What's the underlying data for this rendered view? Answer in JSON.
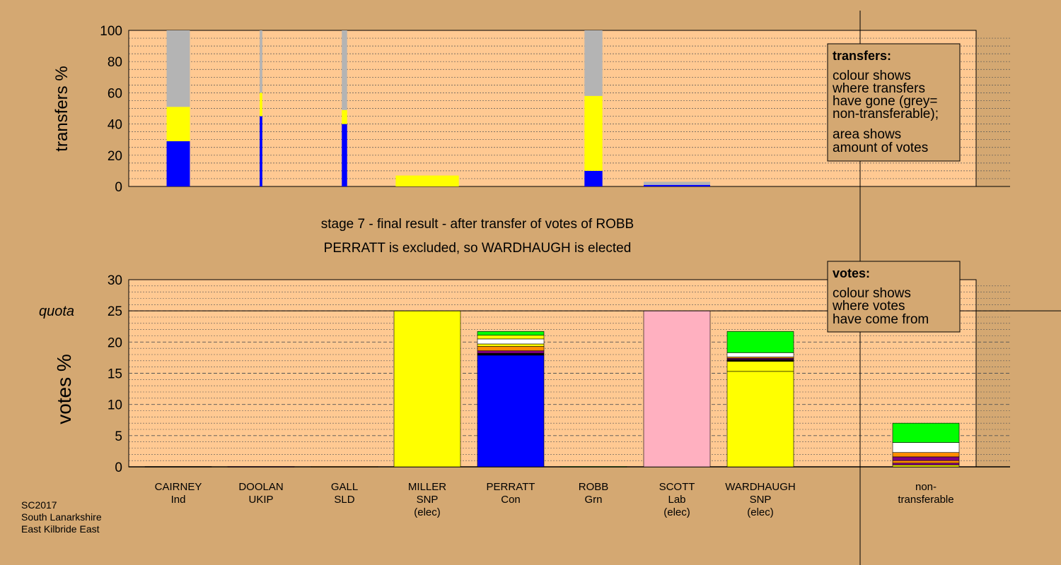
{
  "colors": {
    "background": "#d4a872",
    "plot": "#ffc992",
    "legend_box": "#d4a872",
    "Ind": "#000000",
    "UKIP": "#800080",
    "SLD": "#ff8c00",
    "SNP": "#ffff00",
    "Con": "#0000ff",
    "Grn": "#00ff00",
    "Lab": "#ffb0c0",
    "nt": "#b4b4b4",
    "white": "#ffffff"
  },
  "header": {
    "line1": "stage 7 - final result - after transfer of votes of ROBB",
    "line2": "PERRATT is excluded, so WARDHAUGH is elected"
  },
  "footer": {
    "line1": "SC2017",
    "line2": "South Lanarkshire",
    "line3": "East Kilbride East"
  },
  "legend_transfers": {
    "title": "transfers:",
    "line1": "colour shows",
    "line2": "where transfers",
    "line3": "have gone (grey=",
    "line4": "non-transferable);",
    "line5": "area shows",
    "line6": "amount of votes"
  },
  "legend_votes": {
    "title": "votes:",
    "line1": "colour shows",
    "line2": "where votes",
    "line3": "have come from"
  },
  "candidates": [
    {
      "name": "CAIRNEY",
      "party": "Ind",
      "note": ""
    },
    {
      "name": "DOOLAN",
      "party": "UKIP",
      "note": ""
    },
    {
      "name": "GALL",
      "party": "SLD",
      "note": ""
    },
    {
      "name": "MILLER",
      "party": "SNP",
      "note": "(elec)"
    },
    {
      "name": "PERRATT",
      "party": "Con",
      "note": ""
    },
    {
      "name": "ROBB",
      "party": "Grn",
      "note": ""
    },
    {
      "name": "SCOTT",
      "party": "Lab",
      "note": "(elec)"
    },
    {
      "name": "WARDHAUGH",
      "party": "SNP",
      "note": "(elec)"
    },
    {
      "name": "non-",
      "party": "transferable",
      "note": ""
    }
  ],
  "chart_data": [
    {
      "type": "bar",
      "stacked": true,
      "ylabel": "transfers %",
      "ylim": [
        0,
        100
      ],
      "yticks": [
        0,
        20,
        40,
        60,
        80,
        100
      ],
      "grid": "dotted",
      "bars": [
        {
          "from": "CAIRNEY",
          "width_share": 0.35,
          "segments": [
            {
              "color": "Con",
              "value": 29
            },
            {
              "color": "SNP",
              "value": 22
            },
            {
              "color": "nt",
              "value": 49
            }
          ]
        },
        {
          "from": "DOOLAN",
          "width_share": 0.04,
          "segments": [
            {
              "color": "Con",
              "value": 45
            },
            {
              "color": "SNP",
              "value": 15
            },
            {
              "color": "nt",
              "value": 40
            }
          ]
        },
        {
          "from": "GALL",
          "width_share": 0.08,
          "segments": [
            {
              "color": "Con",
              "value": 40
            },
            {
              "color": "SNP",
              "value": 9
            },
            {
              "color": "nt",
              "value": 51
            }
          ]
        },
        {
          "from": "MILLER",
          "width_share": 0.95,
          "segments": [
            {
              "color": "SNP",
              "value": 7
            }
          ]
        },
        {
          "from": "ROBB",
          "width_share": 0.27,
          "segments": [
            {
              "color": "Con",
              "value": 10
            },
            {
              "color": "SNP",
              "value": 48
            },
            {
              "color": "nt",
              "value": 42
            }
          ]
        },
        {
          "from": "SCOTT",
          "width_share": 1.0,
          "segments": [
            {
              "color": "Con",
              "value": 1
            },
            {
              "color": "nt",
              "value": 2
            }
          ]
        }
      ]
    },
    {
      "type": "bar",
      "stacked": true,
      "ylabel": "votes %",
      "ylim": [
        0,
        30
      ],
      "yticks": [
        0,
        5,
        10,
        15,
        20,
        25,
        30
      ],
      "quota": {
        "label": "quota",
        "value": 25
      },
      "grid": "dashed",
      "bars": [
        {
          "candidate": "CAIRNEY",
          "segments": [
            {
              "color": "Ind",
              "value": 0.05
            }
          ]
        },
        {
          "candidate": "DOOLAN",
          "segments": [
            {
              "color": "UKIP",
              "value": 0.05
            }
          ]
        },
        {
          "candidate": "GALL",
          "segments": [
            {
              "color": "SLD",
              "value": 0.05
            }
          ]
        },
        {
          "candidate": "MILLER",
          "segments": [
            {
              "color": "SNP",
              "value": 25
            }
          ]
        },
        {
          "candidate": "PERRATT",
          "segments": [
            {
              "color": "Con",
              "value": 17.9
            },
            {
              "color": "Ind",
              "value": 0.3
            },
            {
              "color": "UKIP",
              "value": 0.4
            },
            {
              "color": "SLD",
              "value": 0.7
            },
            {
              "color": "SNP",
              "value": 0.4
            },
            {
              "color": "white",
              "value": 0.8
            },
            {
              "color": "SNP",
              "value": 0.6
            },
            {
              "color": "Grn",
              "value": 0.6
            }
          ]
        },
        {
          "candidate": "ROBB",
          "segments": [
            {
              "color": "Grn",
              "value": 0.05
            }
          ]
        },
        {
          "candidate": "SCOTT",
          "segments": [
            {
              "color": "Lab",
              "value": 25
            }
          ]
        },
        {
          "candidate": "WARDHAUGH",
          "segments": [
            {
              "color": "SNP",
              "value": 15.3
            },
            {
              "color": "SNP",
              "value": 1.6
            },
            {
              "color": "Ind",
              "value": 0.3
            },
            {
              "color": "UKIP",
              "value": 0.2
            },
            {
              "color": "SLD",
              "value": 0.2
            },
            {
              "color": "white",
              "value": 0.7
            },
            {
              "color": "Grn",
              "value": 3.4
            }
          ]
        },
        {
          "candidate": "non-transferable",
          "segments": [
            {
              "color": "SNP",
              "value": 0.3
            },
            {
              "color": "UKIP",
              "value": 0.3
            },
            {
              "color": "SLD",
              "value": 0.4
            },
            {
              "color": "UKIP",
              "value": 0.6
            },
            {
              "color": "SLD",
              "value": 0.7
            },
            {
              "color": "white",
              "value": 1.6
            },
            {
              "color": "Grn",
              "value": 3.1
            }
          ]
        }
      ]
    }
  ]
}
